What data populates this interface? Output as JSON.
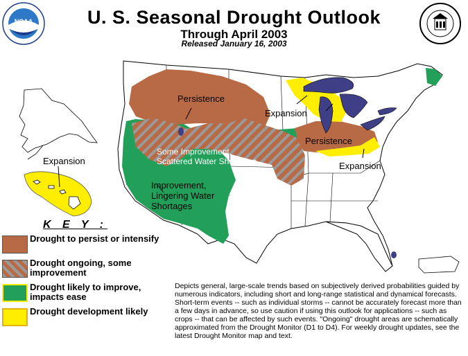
{
  "header": {
    "title": "U. S. Seasonal Drought Outlook",
    "subtitle": "Through April 2003",
    "released": "Released January 16, 2003",
    "left_logo_text": "NOAA",
    "right_logo_text": "DEPARTMENT OF COMMERCE"
  },
  "map": {
    "labels": {
      "persistence_north": "Persistence",
      "persistence_midwest": "Persistence",
      "expansion_greatlakes": "Expansion",
      "expansion_east": "Expansion",
      "expansion_hawaii": "Expansion",
      "some_improvement_1": "Some Improvement,",
      "some_improvement_2": "Scattered Water  Shortages",
      "improvement_1": "Improvement,",
      "improvement_2": "Lingering Water",
      "improvement_3": "Shortages"
    }
  },
  "key": {
    "title": "K E Y :",
    "items": [
      {
        "label": "Drought to persist or intensify",
        "color": "#b86a45"
      },
      {
        "label": "Drought ongoing, some improvement",
        "color": "#b86a45",
        "stripe": "#9a9a9a"
      },
      {
        "label": "Drought likely to improve, impacts ease",
        "color": "#22a05a"
      },
      {
        "label": "Drought development likely",
        "color": "#ffee00"
      }
    ]
  },
  "description": "Depicts general, large-scale trends based on subjectively derived probabilities guided by numerous indicators, including short and long-range statistical and dynamical forecasts. Short-term events -- such as individual storms -- cannot be accurately forecast more than a few days in advance, so use caution if using this outlook for applications -- such as crops -- that can be affected by such events. \"Ongoing\" drought areas are schematically approximated from the Drought Monitor (D1 to D4). For weekly drought updates, see the latest Drought Monitor map and text.",
  "colors": {
    "persist": "#b86a45",
    "improve": "#22a05a",
    "develop": "#ffee00",
    "lakes": "#3f3f88",
    "outline": "#000000"
  }
}
